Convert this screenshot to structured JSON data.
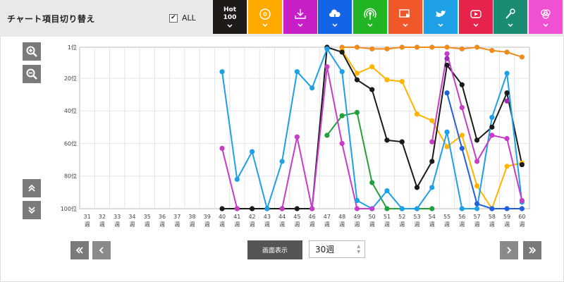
{
  "header": {
    "title": "チャート項目切り替え",
    "all_label": "ALL",
    "all_checked": true,
    "check_mark": "✔"
  },
  "categories": [
    {
      "name": "Hot 100",
      "label_top": "Hot",
      "label_bottom": "100",
      "color": "#1e1a17",
      "icon": "text-label"
    },
    {
      "name": "sales",
      "color": "#ffaa00",
      "icon": "cd-icon"
    },
    {
      "name": "download",
      "color": "#c81ec8",
      "icon": "download-icon"
    },
    {
      "name": "streaming",
      "color": "#1464e6",
      "icon": "cloud-icon"
    },
    {
      "name": "radio",
      "color": "#23b423",
      "icon": "broadcast-icon"
    },
    {
      "name": "video",
      "color": "#f0582a",
      "icon": "screen-play-icon"
    },
    {
      "name": "twitter",
      "color": "#1ea0e6",
      "icon": "bird-icon"
    },
    {
      "name": "youtube",
      "color": "#e6234b",
      "icon": "play-button-icon"
    },
    {
      "name": "karaoke",
      "color": "#198c73",
      "icon": "microphone-icon"
    },
    {
      "name": "lookup",
      "color": "#f050d2",
      "icon": "circles-icon"
    }
  ],
  "controls": {
    "display_label": "画面表示",
    "week_select_value": "30週",
    "zoom_in_icon": "zoom-in-icon",
    "zoom_out_icon": "zoom-out-icon",
    "scroll_up_icon": "double-chevron-up-icon",
    "scroll_down_icon": "double-chevron-down-icon",
    "first_icon": "double-chevron-left-icon",
    "prev_icon": "chevron-left-icon",
    "next_icon": "chevron-right-icon",
    "last_icon": "double-chevron-right-icon"
  },
  "chart_data": {
    "type": "line",
    "y_inverted": true,
    "ylim": [
      1,
      100
    ],
    "y_ticks": [
      1,
      20,
      40,
      60,
      80,
      100
    ],
    "y_tick_labels": [
      "1位",
      "20位",
      "40位",
      "60位",
      "80位",
      "100位"
    ],
    "x": [
      31,
      32,
      33,
      34,
      35,
      36,
      37,
      38,
      39,
      40,
      41,
      42,
      43,
      44,
      45,
      46,
      47,
      48,
      49,
      50,
      51,
      52,
      53,
      54,
      55,
      56,
      57,
      58,
      59,
      60
    ],
    "x_unit": "週",
    "grid": true,
    "series": [
      {
        "color": "#f08a1e",
        "values": [
          null,
          null,
          null,
          null,
          null,
          null,
          null,
          null,
          null,
          null,
          null,
          null,
          null,
          null,
          null,
          null,
          null,
          1,
          1,
          2,
          2,
          1,
          1,
          1,
          1,
          2,
          1,
          3,
          4,
          7
        ]
      },
      {
        "color": "#ffb400",
        "values": [
          null,
          null,
          null,
          null,
          null,
          null,
          null,
          null,
          null,
          null,
          null,
          null,
          null,
          null,
          null,
          null,
          null,
          3,
          17,
          13,
          21,
          22,
          42,
          46,
          62,
          55,
          86,
          100,
          74,
          72
        ]
      },
      {
        "color": "#1a1a1a",
        "values": [
          null,
          null,
          null,
          null,
          null,
          null,
          null,
          null,
          null,
          100,
          100,
          100,
          100,
          100,
          100,
          100,
          1,
          4,
          21,
          27,
          58,
          59,
          87,
          71,
          12,
          24,
          58,
          50,
          29,
          73
        ]
      },
      {
        "color": "#23a03c",
        "values": [
          null,
          null,
          null,
          null,
          null,
          null,
          null,
          null,
          null,
          null,
          null,
          null,
          null,
          null,
          null,
          null,
          55,
          43,
          41,
          84,
          100,
          100,
          100,
          100,
          null,
          null,
          null,
          null,
          null,
          null
        ]
      },
      {
        "color": "#1ea0e6",
        "values": [
          null,
          null,
          null,
          null,
          null,
          null,
          null,
          null,
          null,
          16,
          82,
          65,
          100,
          71,
          16,
          26,
          2,
          16,
          95,
          100,
          89,
          100,
          100,
          87,
          53,
          100,
          100,
          44,
          17,
          96
        ]
      },
      {
        "color": "#c83cc8",
        "values": [
          null,
          null,
          null,
          null,
          null,
          null,
          null,
          null,
          null,
          63,
          100,
          null,
          null,
          100,
          56,
          100,
          13,
          60,
          100,
          100,
          null,
          null,
          null,
          59,
          5,
          38,
          71,
          55,
          57,
          95
        ]
      },
      {
        "color": "#2060e0",
        "values": [
          null,
          null,
          null,
          null,
          null,
          null,
          null,
          null,
          null,
          null,
          null,
          null,
          null,
          null,
          null,
          null,
          null,
          null,
          null,
          null,
          null,
          null,
          null,
          null,
          29,
          63,
          97,
          100,
          100,
          100
        ]
      },
      {
        "color": "#9b2fb4",
        "values": [
          null,
          null,
          null,
          null,
          null,
          null,
          null,
          null,
          null,
          null,
          null,
          null,
          null,
          null,
          null,
          null,
          null,
          null,
          null,
          null,
          null,
          null,
          null,
          null,
          8,
          null,
          null,
          null,
          34,
          null
        ]
      }
    ]
  }
}
